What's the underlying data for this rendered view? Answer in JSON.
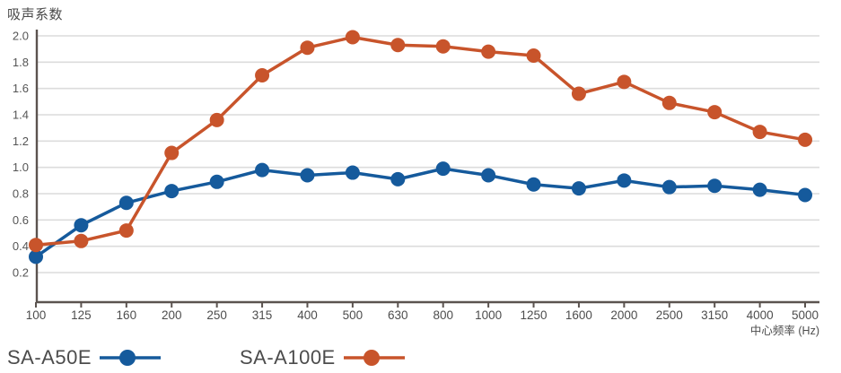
{
  "page": {
    "title": "吸声系数"
  },
  "axes": {
    "x_axis_title": "中心频率 (Hz)",
    "y_tick_labels": [
      "2.0",
      "1.8",
      "1.6",
      "1.4",
      "1.2",
      "1.0",
      "0.8",
      "0.6",
      "0.4",
      "0.2"
    ]
  },
  "colors": {
    "series_blue": "#155a9c",
    "series_orange": "#c8542b",
    "grid": "#dcdcdc",
    "axis": "#5b534f",
    "tick_text": "#555555",
    "title_text": "#4a4a4a"
  },
  "chart_data": {
    "type": "line",
    "title": "吸声系数",
    "xlabel": "中心频率 (Hz)",
    "ylabel": "吸声系数",
    "categories": [
      "100",
      "125",
      "160",
      "200",
      "250",
      "315",
      "400",
      "500",
      "630",
      "800",
      "1000",
      "1250",
      "1600",
      "2000",
      "2500",
      "3150",
      "4000",
      "5000"
    ],
    "series": [
      {
        "name": "SA-A50E",
        "color": "#155a9c",
        "values": [
          0.32,
          0.56,
          0.73,
          0.82,
          0.89,
          0.98,
          0.94,
          0.96,
          0.91,
          0.99,
          0.94,
          0.87,
          0.84,
          0.9,
          0.85,
          0.86,
          0.83,
          0.79
        ]
      },
      {
        "name": "SA-A100E",
        "color": "#c8542b",
        "values": [
          0.41,
          0.44,
          0.52,
          1.11,
          1.36,
          1.7,
          1.91,
          1.99,
          1.93,
          1.92,
          1.88,
          1.85,
          1.56,
          1.65,
          1.49,
          1.42,
          1.27,
          1.21
        ]
      }
    ],
    "y_ticks": [
      0.2,
      0.4,
      0.6,
      0.8,
      1.0,
      1.2,
      1.4,
      1.6,
      1.8,
      2.0
    ],
    "ylim": [
      0,
      2.05
    ],
    "grid": true,
    "legend_position": "bottom-left",
    "marker": "circle"
  }
}
